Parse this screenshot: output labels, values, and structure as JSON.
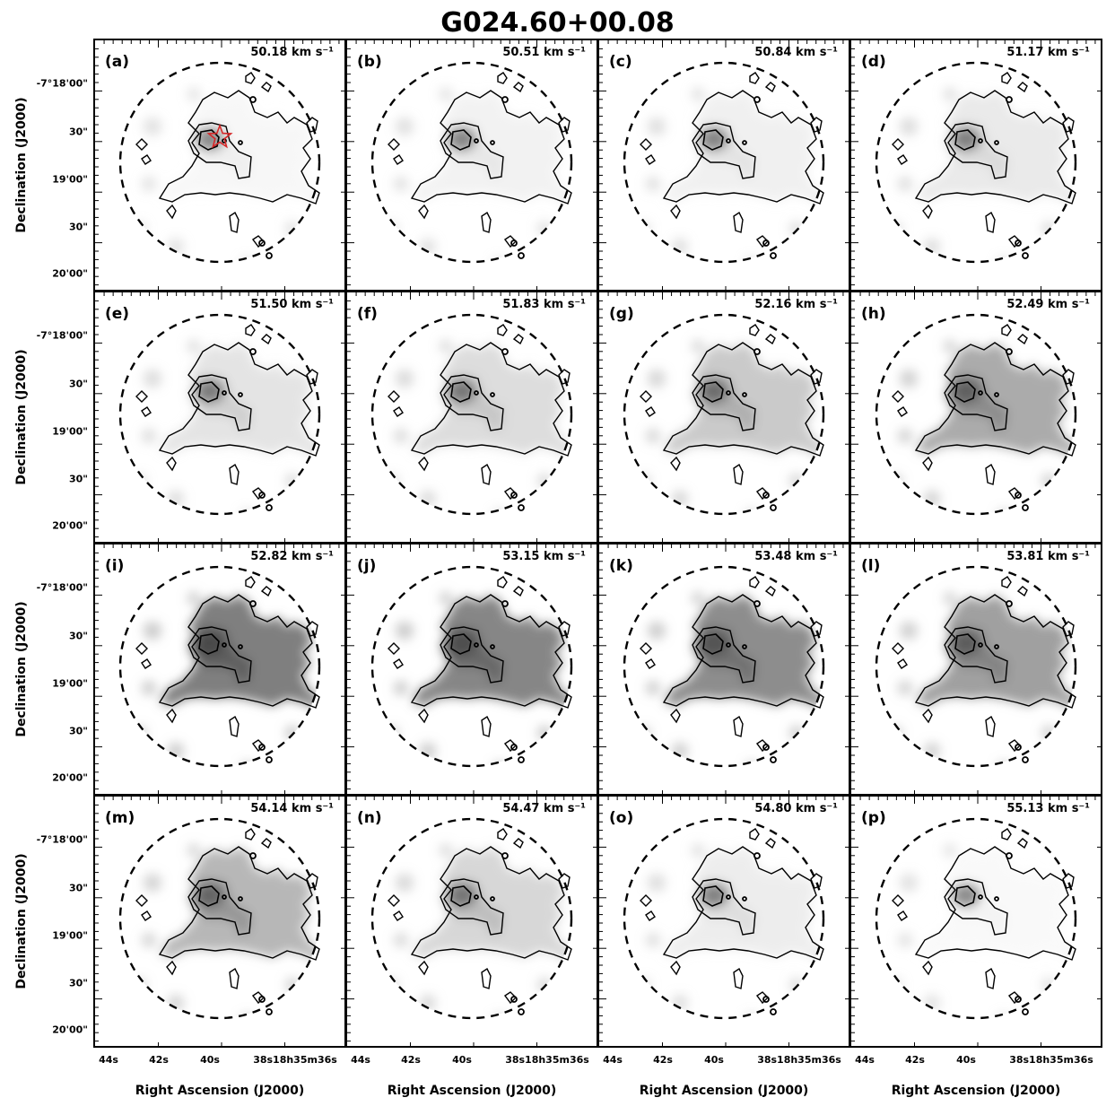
{
  "figure": {
    "title": "G024.60+00.08",
    "ylabel": "Declination (J2000)",
    "xlabel": "Right Ascension (J2000)",
    "y_ticks": [
      "-7°18'00\"",
      "30\"",
      "19'00\"",
      "30\"",
      "20'00\""
    ],
    "x_ticks": [
      "44s",
      "42s",
      "40s",
      "38s18h35m36s"
    ]
  },
  "chart_data": {
    "type": "heatmap",
    "title": "G024.60+00.08",
    "xlabel": "Right Ascension (J2000)",
    "ylabel": "Declination (J2000)",
    "colormap": "greyscale",
    "contour_color": "#000000",
    "beam_boundary": "dashed circle",
    "marker": {
      "shape": "star",
      "color": "#d62728",
      "panel": "a"
    },
    "velocity_unit": "km s⁻¹",
    "panels": [
      {
        "label": "(a)",
        "velocity": 50.18,
        "velocity_text": "50.18 km s⁻¹",
        "intensity": 0.15
      },
      {
        "label": "(b)",
        "velocity": 50.51,
        "velocity_text": "50.51 km s⁻¹",
        "intensity": 0.2
      },
      {
        "label": "(c)",
        "velocity": 50.84,
        "velocity_text": "50.84 km s⁻¹",
        "intensity": 0.22
      },
      {
        "label": "(d)",
        "velocity": 51.17,
        "velocity_text": "51.17 km s⁻¹",
        "intensity": 0.28
      },
      {
        "label": "(e)",
        "velocity": 51.5,
        "velocity_text": "51.50 km s⁻¹",
        "intensity": 0.33
      },
      {
        "label": "(f)",
        "velocity": 51.83,
        "velocity_text": "51.83 km s⁻¹",
        "intensity": 0.38
      },
      {
        "label": "(g)",
        "velocity": 52.16,
        "velocity_text": "52.16 km s⁻¹",
        "intensity": 0.5
      },
      {
        "label": "(h)",
        "velocity": 52.49,
        "velocity_text": "52.49 km s⁻¹",
        "intensity": 0.65
      },
      {
        "label": "(i)",
        "velocity": 52.82,
        "velocity_text": "52.82 km s⁻¹",
        "intensity": 0.9
      },
      {
        "label": "(j)",
        "velocity": 53.15,
        "velocity_text": "53.15 km s⁻¹",
        "intensity": 0.85
      },
      {
        "label": "(k)",
        "velocity": 53.48,
        "velocity_text": "53.48 km s⁻¹",
        "intensity": 0.8
      },
      {
        "label": "(l)",
        "velocity": 53.81,
        "velocity_text": "53.81 km s⁻¹",
        "intensity": 0.7
      },
      {
        "label": "(m)",
        "velocity": 54.14,
        "velocity_text": "54.14 km s⁻¹",
        "intensity": 0.6
      },
      {
        "label": "(n)",
        "velocity": 54.47,
        "velocity_text": "54.47 km s⁻¹",
        "intensity": 0.42
      },
      {
        "label": "(o)",
        "velocity": 54.8,
        "velocity_text": "54.80 km s⁻¹",
        "intensity": 0.25
      },
      {
        "label": "(p)",
        "velocity": 55.13,
        "velocity_text": "55.13 km s⁻¹",
        "intensity": 0.12
      }
    ]
  }
}
